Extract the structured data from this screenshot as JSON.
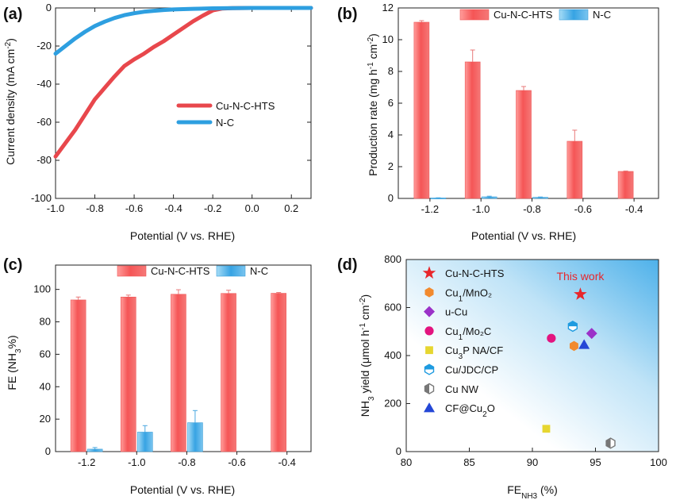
{
  "colors": {
    "cu_line": "#e8474c",
    "nc_line": "#2e9fe0",
    "bar_red": "#f25f60",
    "bar_red_light": "#ffb3b1",
    "bar_blue": "#3fa9e6",
    "bar_blue_light": "#c9e9fa",
    "error_red": "#e87a7a",
    "error_blue": "#4aa8e0",
    "gradient_blue": "#5cb8ec"
  },
  "chart_data": [
    {
      "id": "a",
      "panel_label": "(a)",
      "type": "line",
      "xlabel": "Potential (V vs. RHE)",
      "ylabel": "Current density (mA cm",
      "ylabel_sup": "-2",
      "ylabel_end": ")",
      "xlim": [
        -1.0,
        0.3
      ],
      "ylim": [
        -100,
        0
      ],
      "xticks": [
        -1.0,
        -0.8,
        -0.6,
        -0.4,
        -0.2,
        0.0,
        0.2
      ],
      "xtick_labels": [
        "-1.0",
        "-0.8",
        "-0.6",
        "-0.4",
        "-0.2",
        "0.0",
        "0.2"
      ],
      "yticks": [
        0,
        -20,
        -40,
        -60,
        -80,
        -100
      ],
      "ytick_labels": [
        "0",
        "-20",
        "-40",
        "-60",
        "-80",
        "-100"
      ],
      "legend_position": "center-right",
      "series": [
        {
          "name": "Cu-N-C-HTS",
          "color": "#e8474c",
          "x": [
            -1.0,
            -0.95,
            -0.9,
            -0.85,
            -0.8,
            -0.75,
            -0.7,
            -0.65,
            -0.6,
            -0.55,
            -0.5,
            -0.45,
            -0.4,
            -0.35,
            -0.3,
            -0.25,
            -0.2,
            -0.15,
            -0.1,
            -0.05,
            0.0,
            0.1,
            0.2,
            0.3
          ],
          "y": [
            -78,
            -71,
            -64,
            -56,
            -48,
            -42,
            -36,
            -30.5,
            -27,
            -24,
            -20.5,
            -17.5,
            -14,
            -10.5,
            -7,
            -4,
            -1.3,
            -0.3,
            -0.1,
            -0.05,
            0,
            0,
            0,
            0
          ]
        },
        {
          "name": "N-C",
          "color": "#2e9fe0",
          "x": [
            -1.0,
            -0.95,
            -0.9,
            -0.85,
            -0.8,
            -0.75,
            -0.7,
            -0.65,
            -0.6,
            -0.55,
            -0.5,
            -0.45,
            -0.4,
            -0.3,
            -0.2,
            -0.1,
            0.0,
            0.1,
            0.2,
            0.3
          ],
          "y": [
            -24,
            -20,
            -16,
            -12.5,
            -9.5,
            -7.2,
            -5.3,
            -3.8,
            -2.8,
            -2.0,
            -1.5,
            -1.1,
            -0.8,
            -0.45,
            -0.2,
            -0.1,
            0,
            0,
            0,
            0
          ]
        }
      ]
    },
    {
      "id": "b",
      "panel_label": "(b)",
      "type": "bar",
      "xlabel": "Potential (V vs. RHE)",
      "ylabel": "Production rate (mg h",
      "ylabel_sup1": "-1",
      "ylabel_mid": " cm",
      "ylabel_sup2": "-2",
      "ylabel_end": ")",
      "categories": [
        "-1.2",
        "-1.0",
        "-0.8",
        "-0.6",
        "-0.4"
      ],
      "ylim": [
        0,
        12
      ],
      "yticks": [
        0,
        2,
        4,
        6,
        8,
        10,
        12
      ],
      "ytick_labels": [
        "0",
        "2",
        "4",
        "6",
        "8",
        "10",
        "12"
      ],
      "legend_position": "top-center",
      "series": [
        {
          "name": "Cu-N-C-HTS",
          "values": [
            11.1,
            8.6,
            6.8,
            3.6,
            1.7
          ],
          "errors": [
            0.1,
            0.75,
            0.25,
            0.7,
            0.03
          ]
        },
        {
          "name": "N-C",
          "values": [
            0.03,
            0.1,
            0.07,
            0.0,
            0.0
          ],
          "errors": [
            0.01,
            0.04,
            0.02,
            0.0,
            0.0
          ]
        }
      ]
    },
    {
      "id": "c",
      "panel_label": "(c)",
      "type": "bar",
      "xlabel": "Potential (V vs. RHE)",
      "ylabel_main": "FE (NH",
      "ylabel_sub": "3",
      "ylabel_end": "%)",
      "categories": [
        "-1.2",
        "-1.0",
        "-0.8",
        "-0.6",
        "-0.4"
      ],
      "ylim": [
        0,
        115
      ],
      "yticks": [
        0,
        20,
        40,
        60,
        80,
        100
      ],
      "ytick_labels": [
        "0",
        "20",
        "40",
        "60",
        "80",
        "100"
      ],
      "legend_position": "top-center",
      "series": [
        {
          "name": "Cu-N-C-HTS",
          "values": [
            93.5,
            95.3,
            97.0,
            97.5,
            97.6
          ],
          "errors": [
            1.8,
            1.2,
            2.8,
            2.0,
            0.5
          ]
        },
        {
          "name": "N-C",
          "values": [
            1.5,
            12.0,
            17.8,
            0.0,
            0.0
          ],
          "errors": [
            1.0,
            4.0,
            7.5,
            0.0,
            0.0
          ]
        }
      ]
    },
    {
      "id": "d",
      "panel_label": "(d)",
      "type": "scatter",
      "xlabel_main": "FE",
      "xlabel_sub": "NH3",
      "xlabel_end": " (%)",
      "ylabel_pre": "NH",
      "ylabel_sub": "3",
      "ylabel_mid": " yield (μmol h",
      "ylabel_sup1": "-1",
      "ylabel_mid2": " cm",
      "ylabel_sup2": "-2",
      "ylabel_end": ")",
      "xlim": [
        80,
        100
      ],
      "ylim": [
        0,
        800
      ],
      "xticks": [
        80,
        85,
        90,
        95,
        100
      ],
      "xtick_labels": [
        "80",
        "85",
        "90",
        "95",
        "100"
      ],
      "yticks": [
        0,
        200,
        400,
        600,
        800
      ],
      "ytick_labels": [
        "0",
        "200",
        "400",
        "600",
        "800"
      ],
      "annotation": "This work",
      "legend_position": "left",
      "points": [
        {
          "name_main": "Cu-N-C-HTS",
          "name_sub": "",
          "name_end": "",
          "marker": "star",
          "color": "#e8262b",
          "x": 93.8,
          "y": 655
        },
        {
          "name_main": "Cu",
          "name_sub": "1",
          "name_end": "/MnO₂",
          "marker": "hexagon",
          "color": "#f28a2e",
          "x": 93.3,
          "y": 440
        },
        {
          "name_main": "u-Cu",
          "name_sub": "",
          "name_end": "",
          "marker": "diamond",
          "color": "#9b32c8",
          "x": 94.7,
          "y": 492
        },
        {
          "name_main": "Cu",
          "name_sub": "1",
          "name_end": "/Mo₂C",
          "marker": "circle",
          "color": "#e3147f",
          "x": 91.5,
          "y": 472
        },
        {
          "name_main": "Cu",
          "name_sub": "3",
          "name_end": "P NA/CF",
          "marker": "square",
          "color": "#e6d630",
          "x": 91.1,
          "y": 95
        },
        {
          "name_main": "Cu/JDC/CP",
          "name_sub": "",
          "name_end": "",
          "marker": "hexhalf-blue",
          "color": "#1e9be0",
          "x": 93.2,
          "y": 522
        },
        {
          "name_main": "Cu NW",
          "name_sub": "",
          "name_end": "",
          "marker": "hexhalf-gray",
          "color": "#777777",
          "x": 96.2,
          "y": 35
        },
        {
          "name_main": "CF@Cu",
          "name_sub": "2",
          "name_end": "O",
          "marker": "triangle",
          "color": "#2447d6",
          "x": 94.1,
          "y": 445
        }
      ]
    }
  ]
}
